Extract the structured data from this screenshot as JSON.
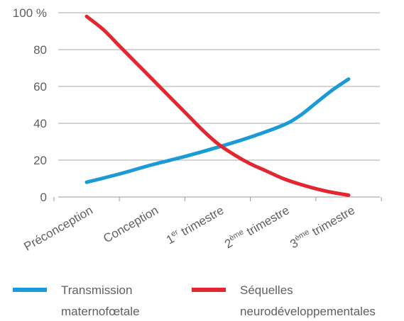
{
  "chart_data": {
    "type": "line",
    "categories": [
      {
        "base": "Préconception",
        "sup": "",
        "rest": ""
      },
      {
        "base": "Conception",
        "sup": "",
        "rest": ""
      },
      {
        "base": "1",
        "sup": "er",
        "rest": " trimestre"
      },
      {
        "base": "2",
        "sup": "ème",
        "rest": " trimestre"
      },
      {
        "base": "3",
        "sup": "ème",
        "rest": " trimestre"
      }
    ],
    "y_ticks": [
      "0",
      "20",
      "40",
      "60",
      "80",
      "100 %"
    ],
    "ylim": [
      0,
      100
    ],
    "xlim": [
      0,
      4
    ],
    "grid": true,
    "series": [
      {
        "name_lines": [
          "Transmission",
          "maternofœtale"
        ],
        "color": "#1a9ad6",
        "x": [
          0,
          0.5,
          1,
          1.5,
          2,
          2.5,
          3,
          3.25,
          3.5,
          3.75,
          4
        ],
        "y": [
          8,
          12.5,
          17.5,
          22,
          27,
          32.5,
          39,
          44,
          51,
          58,
          64
        ]
      },
      {
        "name_lines": [
          "Séquelles",
          "neurodéveloppementales"
        ],
        "color": "#e3262f",
        "x": [
          0,
          0.25,
          0.5,
          0.75,
          1,
          1.25,
          1.5,
          1.75,
          2,
          2.25,
          2.5,
          2.75,
          3,
          3.25,
          3.5,
          3.75,
          4
        ],
        "y": [
          98,
          91,
          82,
          73,
          64,
          55,
          46,
          37,
          29,
          23,
          18,
          14,
          10,
          7,
          4.5,
          2.5,
          1
        ]
      }
    ],
    "legend_position": "bottom"
  }
}
